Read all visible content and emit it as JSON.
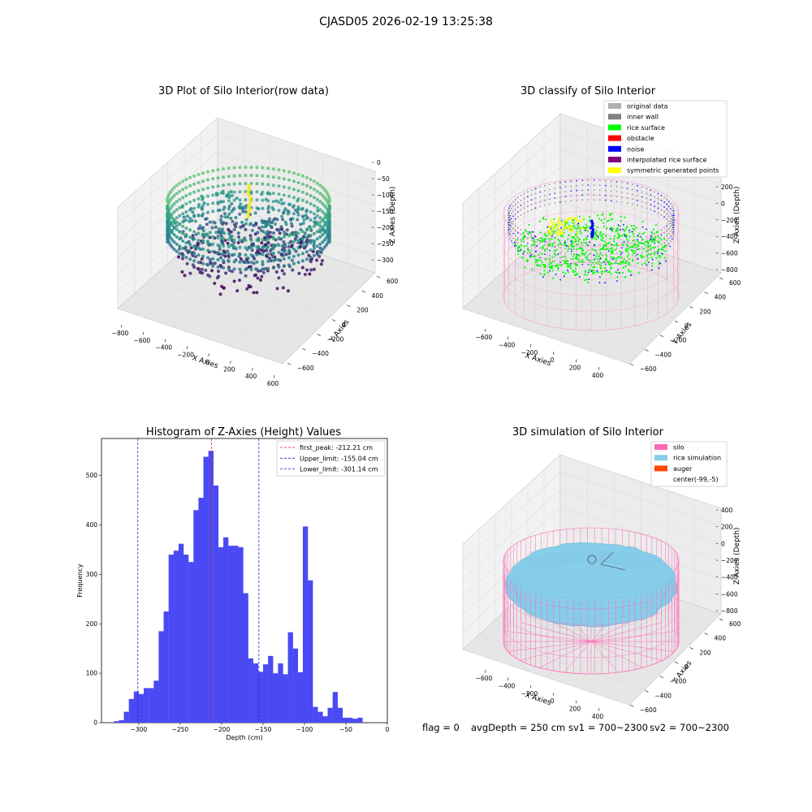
{
  "figure": {
    "title": "CJASD05 2026-02-19 13:25:38",
    "footer": {
      "flag": "flag = 0",
      "avg_depth": "avgDepth = 250 cm",
      "sv1": "sv1 = 700~2300",
      "sv2": "sv2 = 700~2300"
    }
  },
  "colors": {
    "histogram_bar": "#4a4af5",
    "first_peak_line": "#e02020",
    "limit_line": "#2020d0",
    "silo": "#ff69b4",
    "rice_simulation": "#87ceeb",
    "auger": "#ff4500",
    "original_data": "#b0b0b0",
    "inner_wall": "#808080",
    "rice_surface": "#00ff00",
    "obstacle": "#ff0000",
    "noise": "#0000ff",
    "interpolated": "#800080",
    "symmetric": "#ffff00"
  },
  "chart_data": [
    {
      "type": "scatter",
      "projection": "3d",
      "title": "3D Plot of Silo Interior(row data)",
      "xlabel": "X Axies",
      "ylabel": "Y Axies",
      "zlabel": "Z Axies (Depth)",
      "x_ticks": [
        "−800",
        "−600",
        "−400",
        "−200",
        "0",
        "200",
        "400",
        "600"
      ],
      "y_ticks": [
        "−600",
        "−400",
        "−200",
        "0",
        "200",
        "400",
        "600"
      ],
      "z_ticks": [
        "0",
        "−50",
        "−100",
        "−150",
        "−200",
        "−250",
        "−300"
      ],
      "colormap": "viridis"
    },
    {
      "type": "scatter",
      "projection": "3d",
      "title": "3D classify of Silo Interior",
      "xlabel": "X Axies",
      "ylabel": "Y Axies",
      "zlabel": "Z Axies (Depth)",
      "x_ticks": [
        "−600",
        "−400",
        "−200",
        "0",
        "200",
        "400"
      ],
      "y_ticks": [
        "−600",
        "−400",
        "−200",
        "0",
        "200",
        "400",
        "600"
      ],
      "z_ticks": [
        "200",
        "0",
        "−200",
        "−400",
        "−600",
        "−800"
      ],
      "legend": [
        {
          "label": "original data",
          "color": "#b0b0b0"
        },
        {
          "label": "inner wall",
          "color": "#808080"
        },
        {
          "label": "rice surface",
          "color": "#00ff00"
        },
        {
          "label": "obstacle",
          "color": "#ff0000"
        },
        {
          "label": "noise",
          "color": "#0000ff"
        },
        {
          "label": "interpolated rice surface",
          "color": "#800080"
        },
        {
          "label": "symmetric generated points",
          "color": "#ffff00"
        }
      ],
      "legend_loc": "upper-right"
    },
    {
      "type": "bar",
      "title": "Histogram of Z-Axies (Height) Values",
      "xlabel": "Depth (cm)",
      "ylabel": "Frequency",
      "xlim": [
        -345,
        0
      ],
      "ylim": [
        0,
        575
      ],
      "x_ticks": [
        -300,
        -250,
        -200,
        -150,
        -100,
        -50,
        0
      ],
      "y_ticks": [
        0,
        100,
        200,
        300,
        400,
        500
      ],
      "bin_width": 6,
      "bin_start": -330,
      "values": [
        3,
        5,
        22,
        48,
        63,
        58,
        70,
        70,
        85,
        185,
        225,
        340,
        348,
        362,
        340,
        325,
        430,
        455,
        538,
        550,
        480,
        355,
        375,
        358,
        358,
        355,
        262,
        130,
        120,
        103,
        118,
        135,
        100,
        120,
        98,
        183,
        150,
        102,
        397,
        288,
        32,
        22,
        13,
        30,
        62,
        30,
        10,
        10,
        8,
        10
      ],
      "reference_lines": [
        {
          "label": "first_peak: -212.21 cm",
          "x": -212.21,
          "color": "#e02020"
        },
        {
          "label": "Upper_limit: -155.04 cm",
          "x": -155.04,
          "color": "#2020d0"
        },
        {
          "label": "Lower_limit: -301.14 cm",
          "x": -301.14,
          "color": "#2020d0"
        }
      ],
      "legend_loc": "upper-right"
    },
    {
      "type": "surface",
      "projection": "3d",
      "title": "3D simulation of Silo Interior",
      "xlabel": "X Axies",
      "ylabel": "Y Axies",
      "zlabel": "Z Axies (Depth)",
      "x_ticks": [
        "−600",
        "−400",
        "−200",
        "0",
        "200",
        "400"
      ],
      "y_ticks": [
        "−600",
        "−400",
        "−200",
        "0",
        "200",
        "400",
        "600"
      ],
      "z_ticks": [
        "400",
        "200",
        "0",
        "−200",
        "−400",
        "−600",
        "−800"
      ],
      "legend": [
        {
          "label": "silo",
          "color": "#ff69b4"
        },
        {
          "label": "rice simulation",
          "color": "#87ceeb"
        },
        {
          "label": "auger",
          "color": "#ff4500"
        },
        {
          "label": "center(-99,-5)",
          "color": ""
        }
      ],
      "legend_loc": "upper-right"
    }
  ]
}
